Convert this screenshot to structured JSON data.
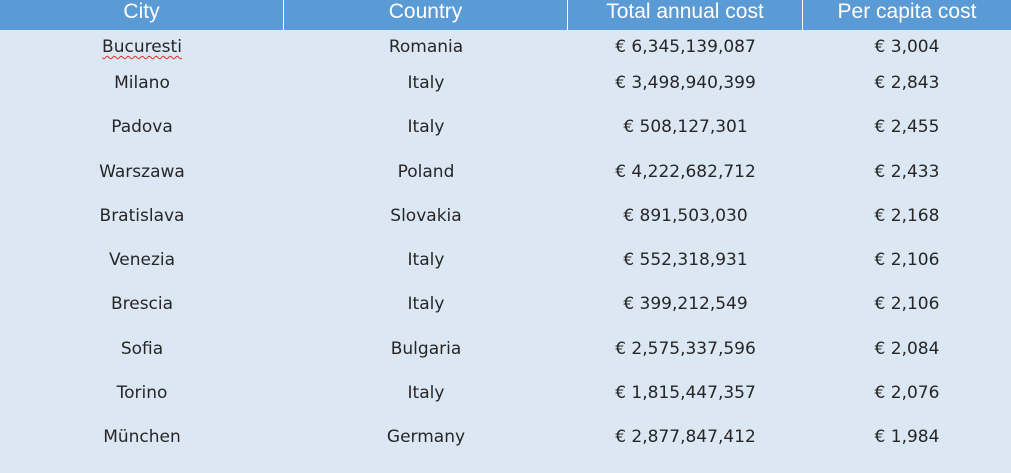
{
  "table": {
    "headers": {
      "city": "City",
      "country": "Country",
      "total": "Total annual cost",
      "per_capita": "Per capita cost"
    },
    "rows": [
      {
        "city": "Bucuresti",
        "country": "Romania",
        "total": "€ 6,345,139,087",
        "per_capita": "€ 3,004"
      },
      {
        "city": "Milano",
        "country": "Italy",
        "total": "€ 3,498,940,399",
        "per_capita": "€ 2,843"
      },
      {
        "city": "Padova",
        "country": "Italy",
        "total": "€ 508,127,301",
        "per_capita": "€ 2,455"
      },
      {
        "city": "Warszawa",
        "country": "Poland",
        "total": "€ 4,222,682,712",
        "per_capita": "€ 2,433"
      },
      {
        "city": "Bratislava",
        "country": "Slovakia",
        "total": "€ 891,503,030",
        "per_capita": "€ 2,168"
      },
      {
        "city": "Venezia",
        "country": "Italy",
        "total": "€ 552,318,931",
        "per_capita": "€ 2,106"
      },
      {
        "city": "Brescia",
        "country": "Italy",
        "total": "€ 399,212,549",
        "per_capita": "€ 2,106"
      },
      {
        "city": "Sofia",
        "country": "Bulgaria",
        "total": "€ 2,575,337,596",
        "per_capita": "€ 2,084"
      },
      {
        "city": "Torino",
        "country": "Italy",
        "total": "€ 1,815,447,357",
        "per_capita": "€ 2,076"
      },
      {
        "city": "München",
        "country": "Germany",
        "total": "€ 2,877,847,412",
        "per_capita": "€ 1,984"
      }
    ]
  },
  "colors": {
    "header_bg": "#5b9bd5",
    "body_bg": "#dce7f4",
    "spellcheck_underline": "#d93025"
  }
}
